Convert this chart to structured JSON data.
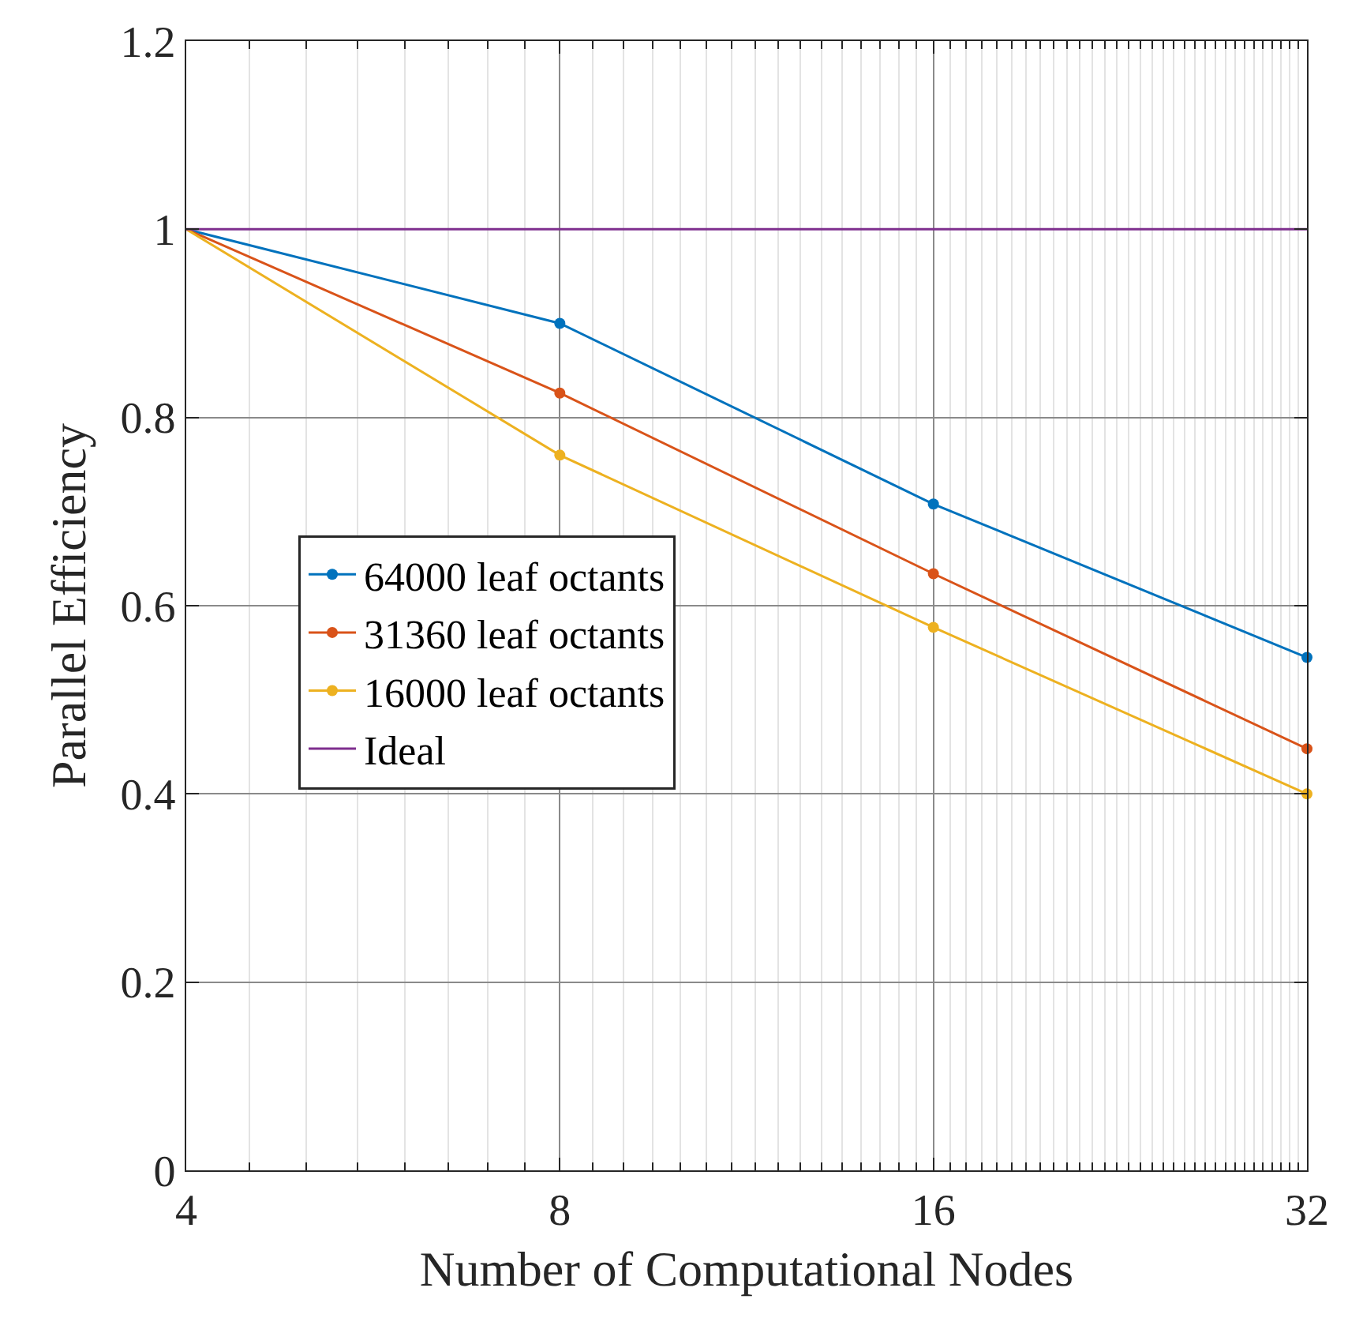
{
  "chart_data": {
    "type": "line",
    "xlabel": "Number of Computational Nodes",
    "ylabel": "Parallel Efficiency",
    "x": [
      4,
      8,
      16,
      32
    ],
    "series": [
      {
        "name": "64000 leaf octants",
        "color": "#0072bd",
        "values": [
          1,
          0.9,
          0.708,
          0.545
        ]
      },
      {
        "name": "31360 leaf octants",
        "color": "#d95319",
        "values": [
          1,
          0.826,
          0.634,
          0.448
        ]
      },
      {
        "name": "16000 leaf octants",
        "color": "#edb120",
        "values": [
          1,
          0.76,
          0.577,
          0.4
        ]
      },
      {
        "name": "Ideal",
        "color": "#7e2f8e",
        "values": [
          1,
          1,
          1,
          1
        ],
        "marker": "none"
      }
    ],
    "xlim": [
      4,
      32
    ],
    "xticks": [
      4,
      8,
      16,
      32
    ],
    "ylim": [
      0,
      1.2
    ],
    "yticks": [
      0,
      0.2,
      0.4,
      0.6,
      0.8,
      1,
      1.2
    ],
    "log": "x",
    "grid": true,
    "legend": "left",
    "marker": "circle",
    "line_style": "solid"
  }
}
